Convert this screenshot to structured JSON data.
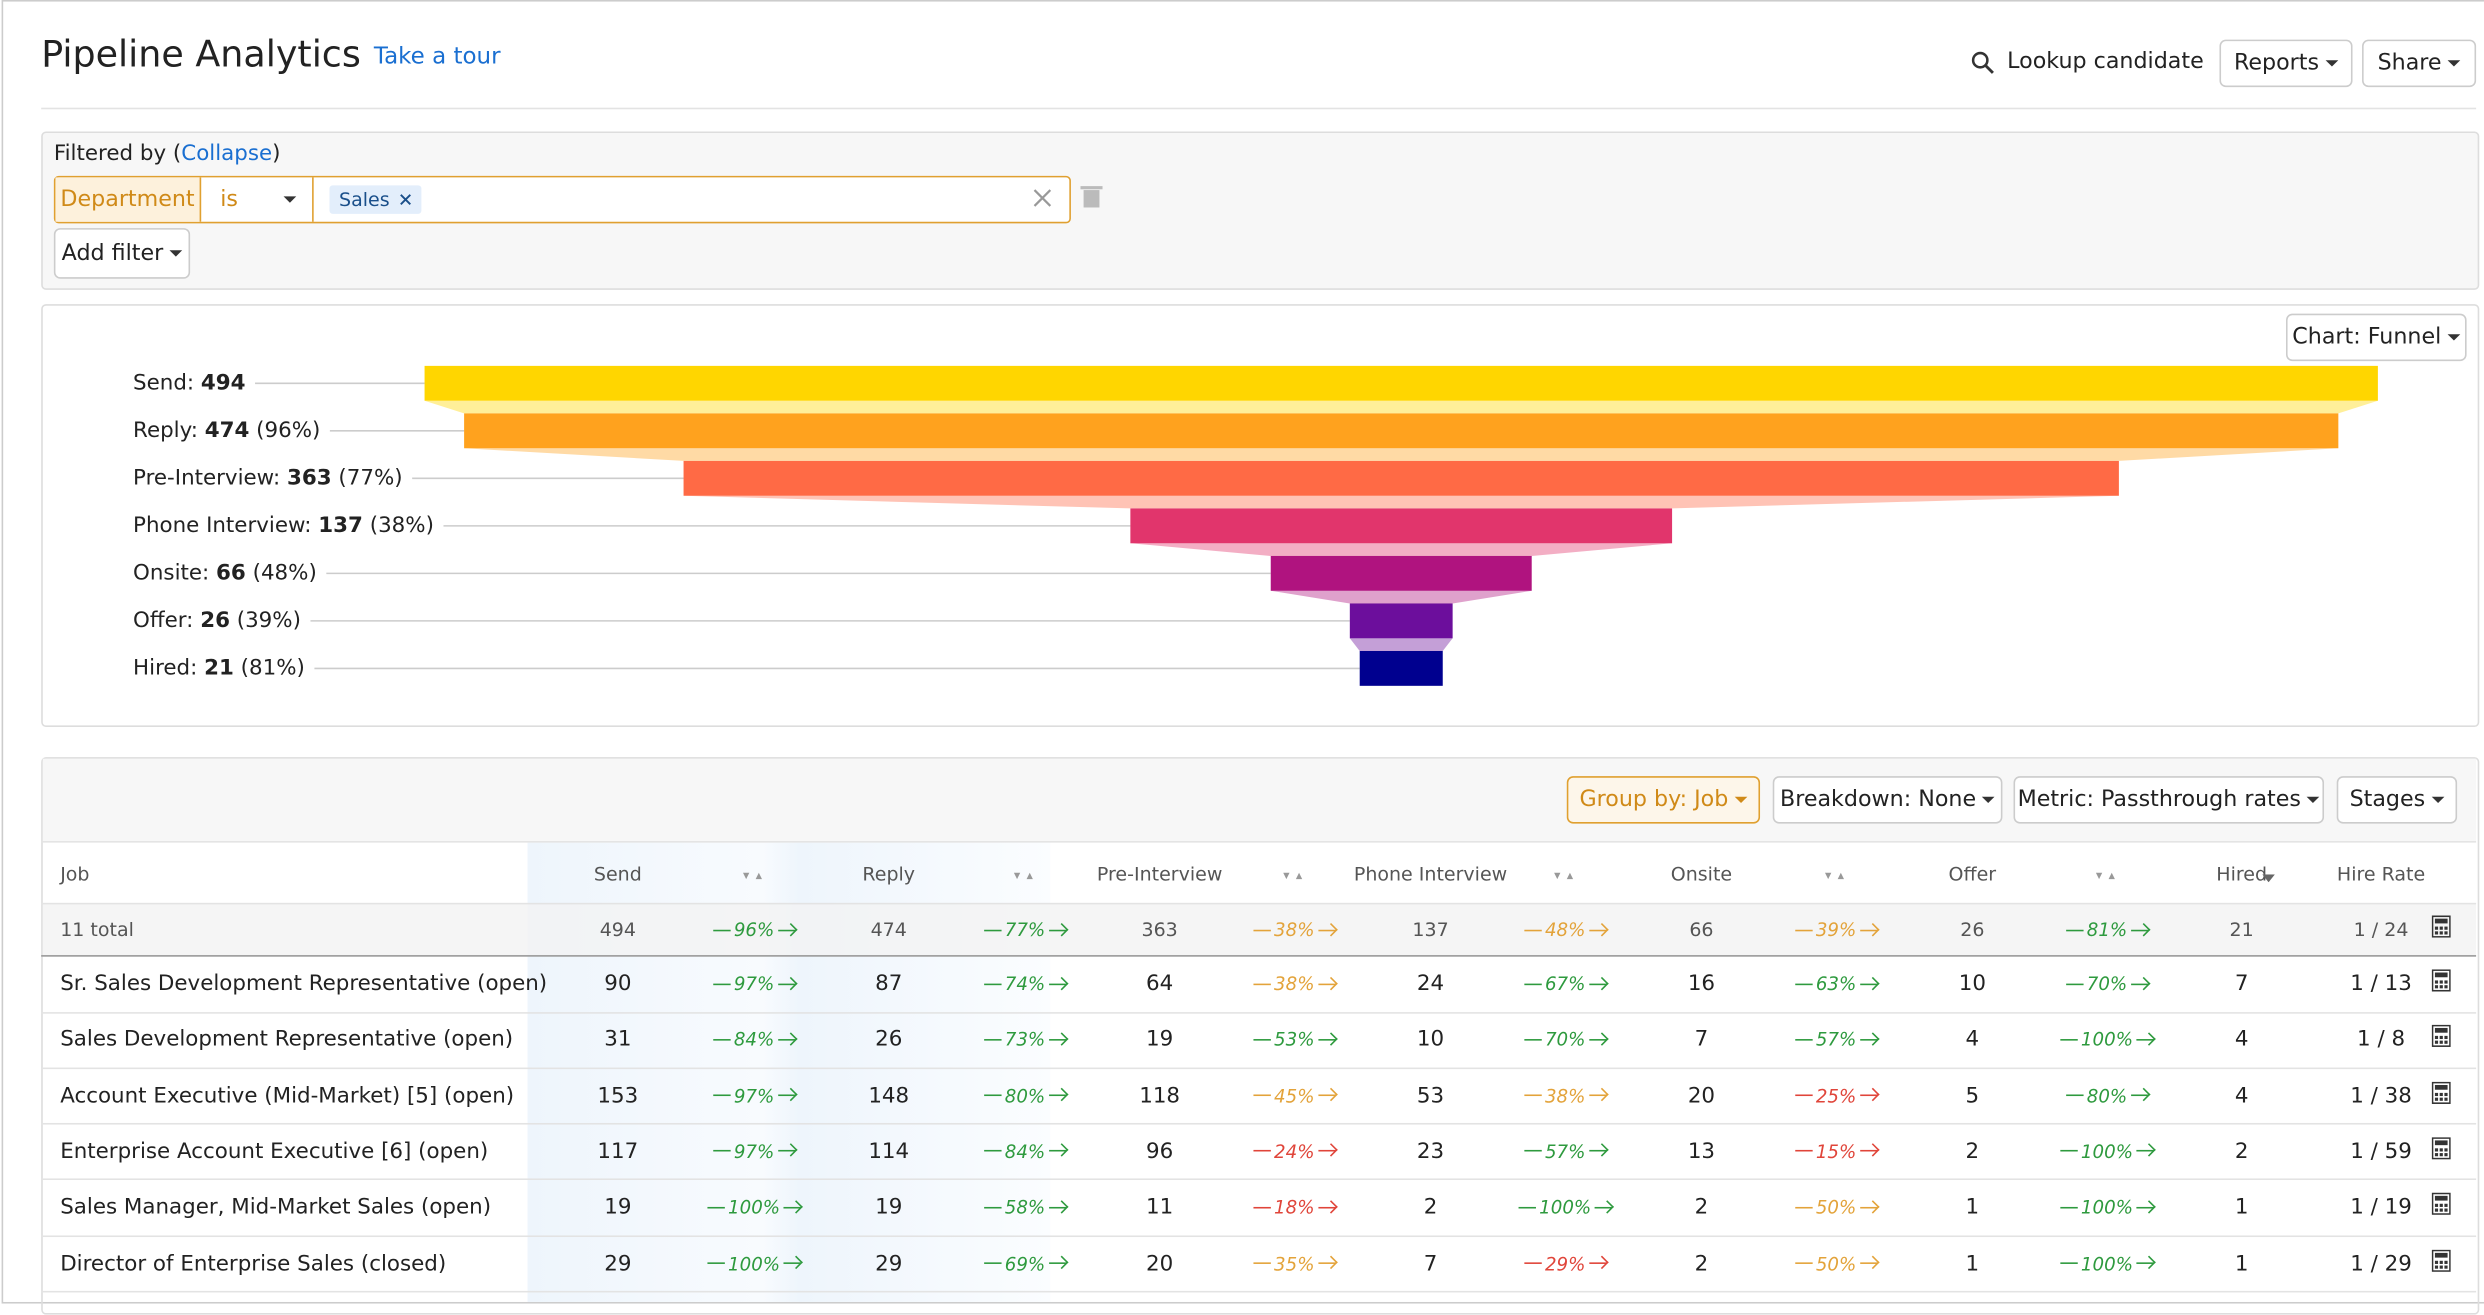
{
  "header": {
    "title": "Pipeline Analytics",
    "tour": "Take a tour",
    "lookup": "Lookup candidate",
    "reports": "Reports",
    "share": "Share"
  },
  "filter": {
    "prefix": "Filtered by (",
    "link": "Collapse",
    "suffix": ")",
    "field": "Department",
    "operator": "is",
    "tag": "Sales",
    "add": "Add filter"
  },
  "chart_button": "Chart: Funnel",
  "chart_data": {
    "type": "funnel",
    "categories": [
      "Send:",
      "Reply:",
      "Pre-Interview:",
      "Phone Interview:",
      "Onsite:",
      "Offer:",
      "Hired:"
    ],
    "values": [
      494,
      474,
      363,
      137,
      66,
      26,
      21
    ],
    "value_labels": [
      null,
      "(96%)",
      "(77%)",
      "(38%)",
      "(48%)",
      "(39%)",
      "(81%)"
    ],
    "colors": [
      "#ffd600",
      "#ffa21e",
      "#ff6a45",
      "#e1356c",
      "#b0137f",
      "#6c0e9c",
      "#00008f"
    ]
  },
  "toolbar": {
    "group": "Group by: Job",
    "breakdown": "Breakdown: None",
    "metric": "Metric: Passthrough rates",
    "stages": "Stages"
  },
  "table": {
    "columns": [
      "Job",
      "Send",
      null,
      "Reply",
      null,
      "Pre-Interview",
      null,
      "Phone Interview",
      null,
      "Onsite",
      null,
      "Offer",
      null,
      "Hired",
      "Hire Rate"
    ],
    "total": [
      "11 total",
      494,
      {
        "label": "96%",
        "tone": "green"
      },
      474,
      {
        "label": "77%",
        "tone": "green"
      },
      363,
      {
        "label": "38%",
        "tone": "orange"
      },
      137,
      {
        "label": "48%",
        "tone": "orange"
      },
      66,
      {
        "label": "39%",
        "tone": "orange"
      },
      26,
      {
        "label": "81%",
        "tone": "green"
      },
      21,
      "1 / 24"
    ],
    "rows": [
      [
        "Sr. Sales Development Representative (open)",
        90,
        {
          "label": "97%",
          "tone": "green"
        },
        87,
        {
          "label": "74%",
          "tone": "green"
        },
        64,
        {
          "label": "38%",
          "tone": "orange"
        },
        24,
        {
          "label": "67%",
          "tone": "green"
        },
        16,
        {
          "label": "63%",
          "tone": "green"
        },
        10,
        {
          "label": "70%",
          "tone": "green"
        },
        7,
        "1 / 13"
      ],
      [
        "Sales Development Representative (open)",
        31,
        {
          "label": "84%",
          "tone": "green"
        },
        26,
        {
          "label": "73%",
          "tone": "green"
        },
        19,
        {
          "label": "53%",
          "tone": "green"
        },
        10,
        {
          "label": "70%",
          "tone": "green"
        },
        7,
        {
          "label": "57%",
          "tone": "green"
        },
        4,
        {
          "label": "100%",
          "tone": "green"
        },
        4,
        "1 / 8"
      ],
      [
        "Account Executive (Mid-Market) [5] (open)",
        153,
        {
          "label": "97%",
          "tone": "green"
        },
        148,
        {
          "label": "80%",
          "tone": "green"
        },
        118,
        {
          "label": "45%",
          "tone": "orange"
        },
        53,
        {
          "label": "38%",
          "tone": "orange"
        },
        20,
        {
          "label": "25%",
          "tone": "red"
        },
        5,
        {
          "label": "80%",
          "tone": "green"
        },
        4,
        "1 / 38"
      ],
      [
        "Enterprise Account Executive [6] (open)",
        117,
        {
          "label": "97%",
          "tone": "green"
        },
        114,
        {
          "label": "84%",
          "tone": "green"
        },
        96,
        {
          "label": "24%",
          "tone": "red"
        },
        23,
        {
          "label": "57%",
          "tone": "green"
        },
        13,
        {
          "label": "15%",
          "tone": "red"
        },
        2,
        {
          "label": "100%",
          "tone": "green"
        },
        2,
        "1 / 59"
      ],
      [
        "Sales Manager, Mid-Market Sales (open)",
        19,
        {
          "label": "100%",
          "tone": "green"
        },
        19,
        {
          "label": "58%",
          "tone": "green"
        },
        11,
        {
          "label": "18%",
          "tone": "red"
        },
        2,
        {
          "label": "100%",
          "tone": "green"
        },
        2,
        {
          "label": "50%",
          "tone": "orange"
        },
        1,
        {
          "label": "100%",
          "tone": "green"
        },
        1,
        "1 / 19"
      ],
      [
        "Director of Enterprise Sales (closed)",
        29,
        {
          "label": "100%",
          "tone": "green"
        },
        29,
        {
          "label": "69%",
          "tone": "green"
        },
        20,
        {
          "label": "35%",
          "tone": "orange"
        },
        7,
        {
          "label": "29%",
          "tone": "red"
        },
        2,
        {
          "label": "50%",
          "tone": "orange"
        },
        1,
        {
          "label": "100%",
          "tone": "green"
        },
        1,
        "1 / 29"
      ]
    ]
  }
}
